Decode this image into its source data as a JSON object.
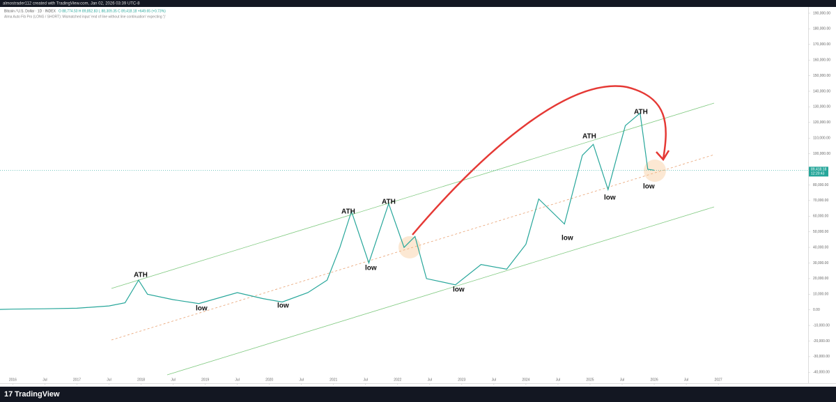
{
  "chart_data": {
    "type": "line",
    "title": "almostrader112 created with TradingView.com, Jan 02, 2026 03:39 UTC-8",
    "subtitle": "Bitcoin / U.S. Dollar · 1D · INDEX",
    "ohlc_text": "O 88,774.50  H 89,852.83  L 88,309.35  C 89,418.18  +649.65 (+0.73%)",
    "indicator_text": "Alma Auto Fib Pro (LONG / SHORT): Mismatched input 'end of line without line continuation' expecting ')'",
    "brand": "TradingView",
    "last_price_label": "89,418.18",
    "countdown": "12:20:43",
    "last_price": 89418.18,
    "annotations": [
      "ATH",
      "ATH",
      "ATH",
      "ATH",
      "ATH",
      "low",
      "low",
      "low",
      "low",
      "low",
      "low",
      "low"
    ],
    "x": [
      2015.8,
      2016.0,
      2016.5,
      2017.0,
      2017.5,
      2017.75,
      2017.96,
      2018.1,
      2018.5,
      2018.9,
      2019.5,
      2019.9,
      2020.2,
      2020.6,
      2020.9,
      2021.1,
      2021.28,
      2021.55,
      2021.86,
      2022.1,
      2022.27,
      2022.45,
      2022.9,
      2023.3,
      2023.7,
      2024.0,
      2024.2,
      2024.6,
      2024.88,
      2025.05,
      2025.28,
      2025.55,
      2025.78,
      2025.9,
      2026.0
    ],
    "series": [
      {
        "name": "BTCUSD",
        "color": "#26a69a",
        "values": [
          250,
          430,
          650,
          1000,
          2500,
          4500,
          19000,
          10000,
          6500,
          4000,
          11000,
          7200,
          5000,
          11000,
          19000,
          40000,
          63000,
          30000,
          68000,
          40000,
          47000,
          20000,
          16000,
          29000,
          26000,
          42000,
          71000,
          55000,
          99000,
          106000,
          77000,
          118000,
          126000,
          90000,
          89418.18
        ]
      }
    ],
    "xlim": [
      2015.8,
      2028.4
    ],
    "ylim": [
      -47000,
      194000
    ],
    "xticks": [
      2016,
      {
        "value": 2016.5,
        "label": "Jul"
      },
      2017,
      {
        "value": 2017.5,
        "label": "Jul"
      },
      2018,
      {
        "value": 2018.5,
        "label": "Jul"
      },
      2019,
      {
        "value": 2019.5,
        "label": "Jul"
      },
      2020,
      {
        "value": 2020.5,
        "label": "Jul"
      },
      2021,
      {
        "value": 2021.5,
        "label": "Jul"
      },
      2022,
      {
        "value": 2022.5,
        "label": "Jul"
      },
      2023,
      {
        "value": 2023.5,
        "label": "Jul"
      },
      2024,
      {
        "value": 2024.5,
        "label": "Jul"
      },
      2025,
      {
        "value": 2025.5,
        "label": "Jul"
      },
      2026,
      {
        "value": 2026.5,
        "label": "Jul"
      },
      2027
    ],
    "yticks": [
      {
        "value": -40000,
        "label": "-40,000.00"
      },
      {
        "value": -30000,
        "label": "-30,000.00"
      },
      {
        "value": -20000,
        "label": "-20,000.00"
      },
      {
        "value": -10000,
        "label": "-10,000.00"
      },
      {
        "value": 0,
        "label": "0.00"
      },
      {
        "value": 10000,
        "label": "10,000.00"
      },
      {
        "value": 20000,
        "label": "20,000.00"
      },
      {
        "value": 30000,
        "label": "30,000.00"
      },
      {
        "value": 40000,
        "label": "40,000.00"
      },
      {
        "value": 50000,
        "label": "50,000.00"
      },
      {
        "value": 60000,
        "label": "60,000.00"
      },
      {
        "value": 70000,
        "label": "70,000.00"
      },
      {
        "value": 80000,
        "label": "80,000.00"
      },
      {
        "value": 90000,
        "label": "90,000.00"
      },
      {
        "value": 100000,
        "label": "100,000.00"
      },
      {
        "value": 110000,
        "label": "110,000.00"
      },
      {
        "value": 120000,
        "label": "120,000.00"
      },
      {
        "value": 130000,
        "label": "130,000.00"
      },
      {
        "value": 140000,
        "label": "140,000.00"
      },
      {
        "value": 150000,
        "label": "150,000.00"
      },
      {
        "value": 160000,
        "label": "160,000.00"
      },
      {
        "value": 170000,
        "label": "170,000.00"
      },
      {
        "value": 180000,
        "label": "180,000.00"
      },
      {
        "value": 190000,
        "label": "190,000.00"
      }
    ],
    "grid": false
  }
}
